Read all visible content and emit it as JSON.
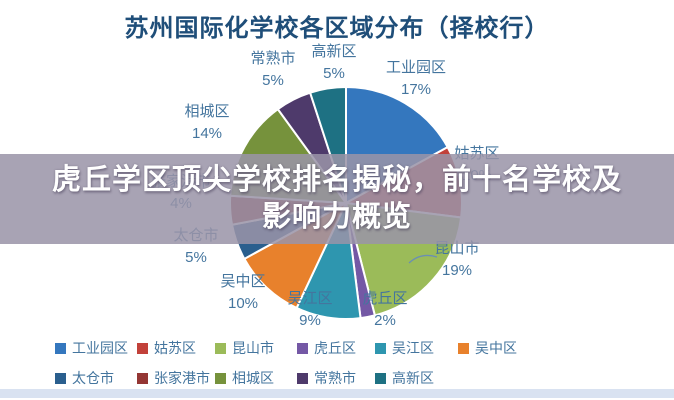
{
  "title": "苏州国际化学校各区域分布（择校行）",
  "title_color": "#1F4E79",
  "overlay_banner": {
    "line1": "虎丘学区顶尖学校排名揭秘，前十名学校及",
    "line2": "影响力概览",
    "text_color": "#ffffff",
    "background_color": "#9A94A8"
  },
  "chart_data": {
    "type": "pie",
    "title": "苏州国际化学校各区域分布（择校行）",
    "unit": "percent",
    "start_angle_deg_from_top": 0,
    "direction": "clockwise",
    "legend_position": "bottom",
    "label_color": "#44759E",
    "slices": [
      {
        "label": "工业园区",
        "value": 17,
        "color": "#3477BE"
      },
      {
        "label": "姑苏区",
        "value": 10,
        "color": "#C2413A"
      },
      {
        "label": "昆山市",
        "value": 19,
        "color": "#9BBB59"
      },
      {
        "label": "虎丘区",
        "value": 2,
        "color": "#7458A5"
      },
      {
        "label": "吴江区",
        "value": 9,
        "color": "#2E96AF"
      },
      {
        "label": "吴中区",
        "value": 10,
        "color": "#E8812C"
      },
      {
        "label": "太仓市",
        "value": 5,
        "color": "#2A5F8E"
      },
      {
        "label": "张家港市",
        "value": 4,
        "color": "#943634"
      },
      {
        "label": "相城区",
        "value": 14,
        "color": "#76923C"
      },
      {
        "label": "常熟市",
        "value": 5,
        "color": "#4E3A6B"
      },
      {
        "label": "高新区",
        "value": 5,
        "color": "#1E7183"
      }
    ]
  }
}
